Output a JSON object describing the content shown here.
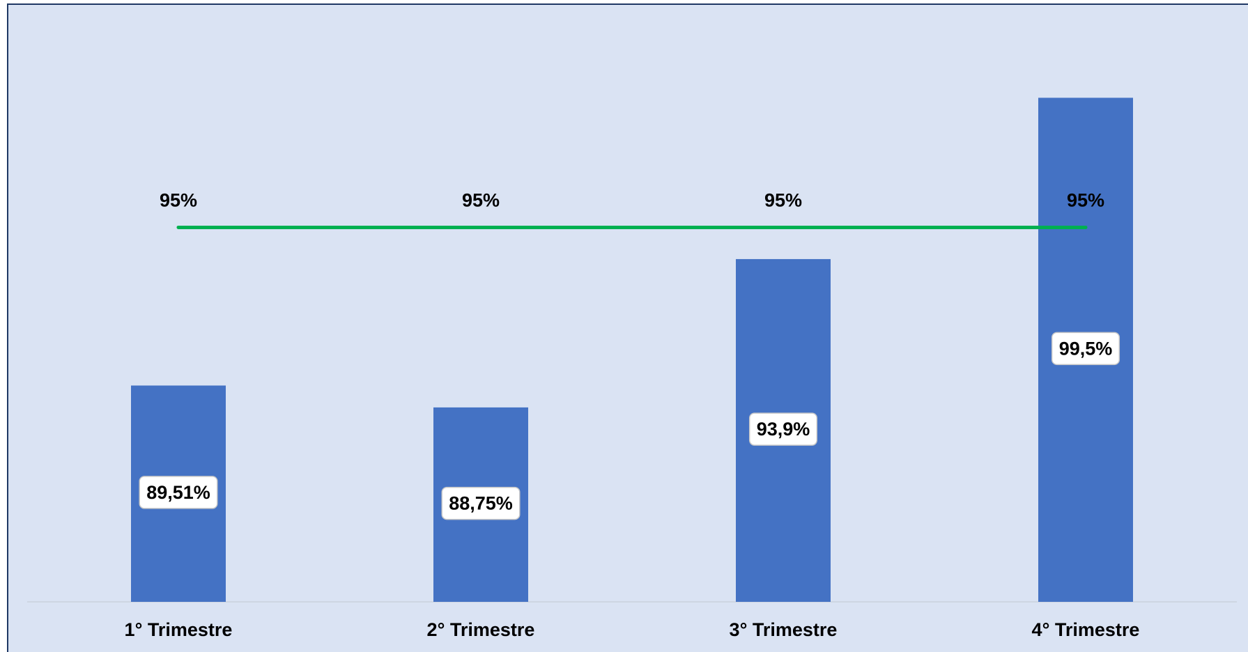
{
  "chart_data": {
    "type": "bar",
    "categories": [
      "1° Trimestre",
      "2° Trimestre",
      "3° Trimestre",
      "4° Trimestre"
    ],
    "series": [
      {
        "type": "bar",
        "color": "#4472c4",
        "values": [
          89.51,
          88.75,
          93.9,
          99.5
        ],
        "value_labels": [
          "89,51%",
          "88,75%",
          "93,9%",
          "99,5%"
        ]
      },
      {
        "type": "line",
        "color": "#00b050",
        "values": [
          95,
          95,
          95,
          95
        ],
        "value_labels": [
          "95%",
          "95%",
          "95%",
          "95%"
        ]
      }
    ],
    "ylim": [
      82,
      102
    ]
  }
}
